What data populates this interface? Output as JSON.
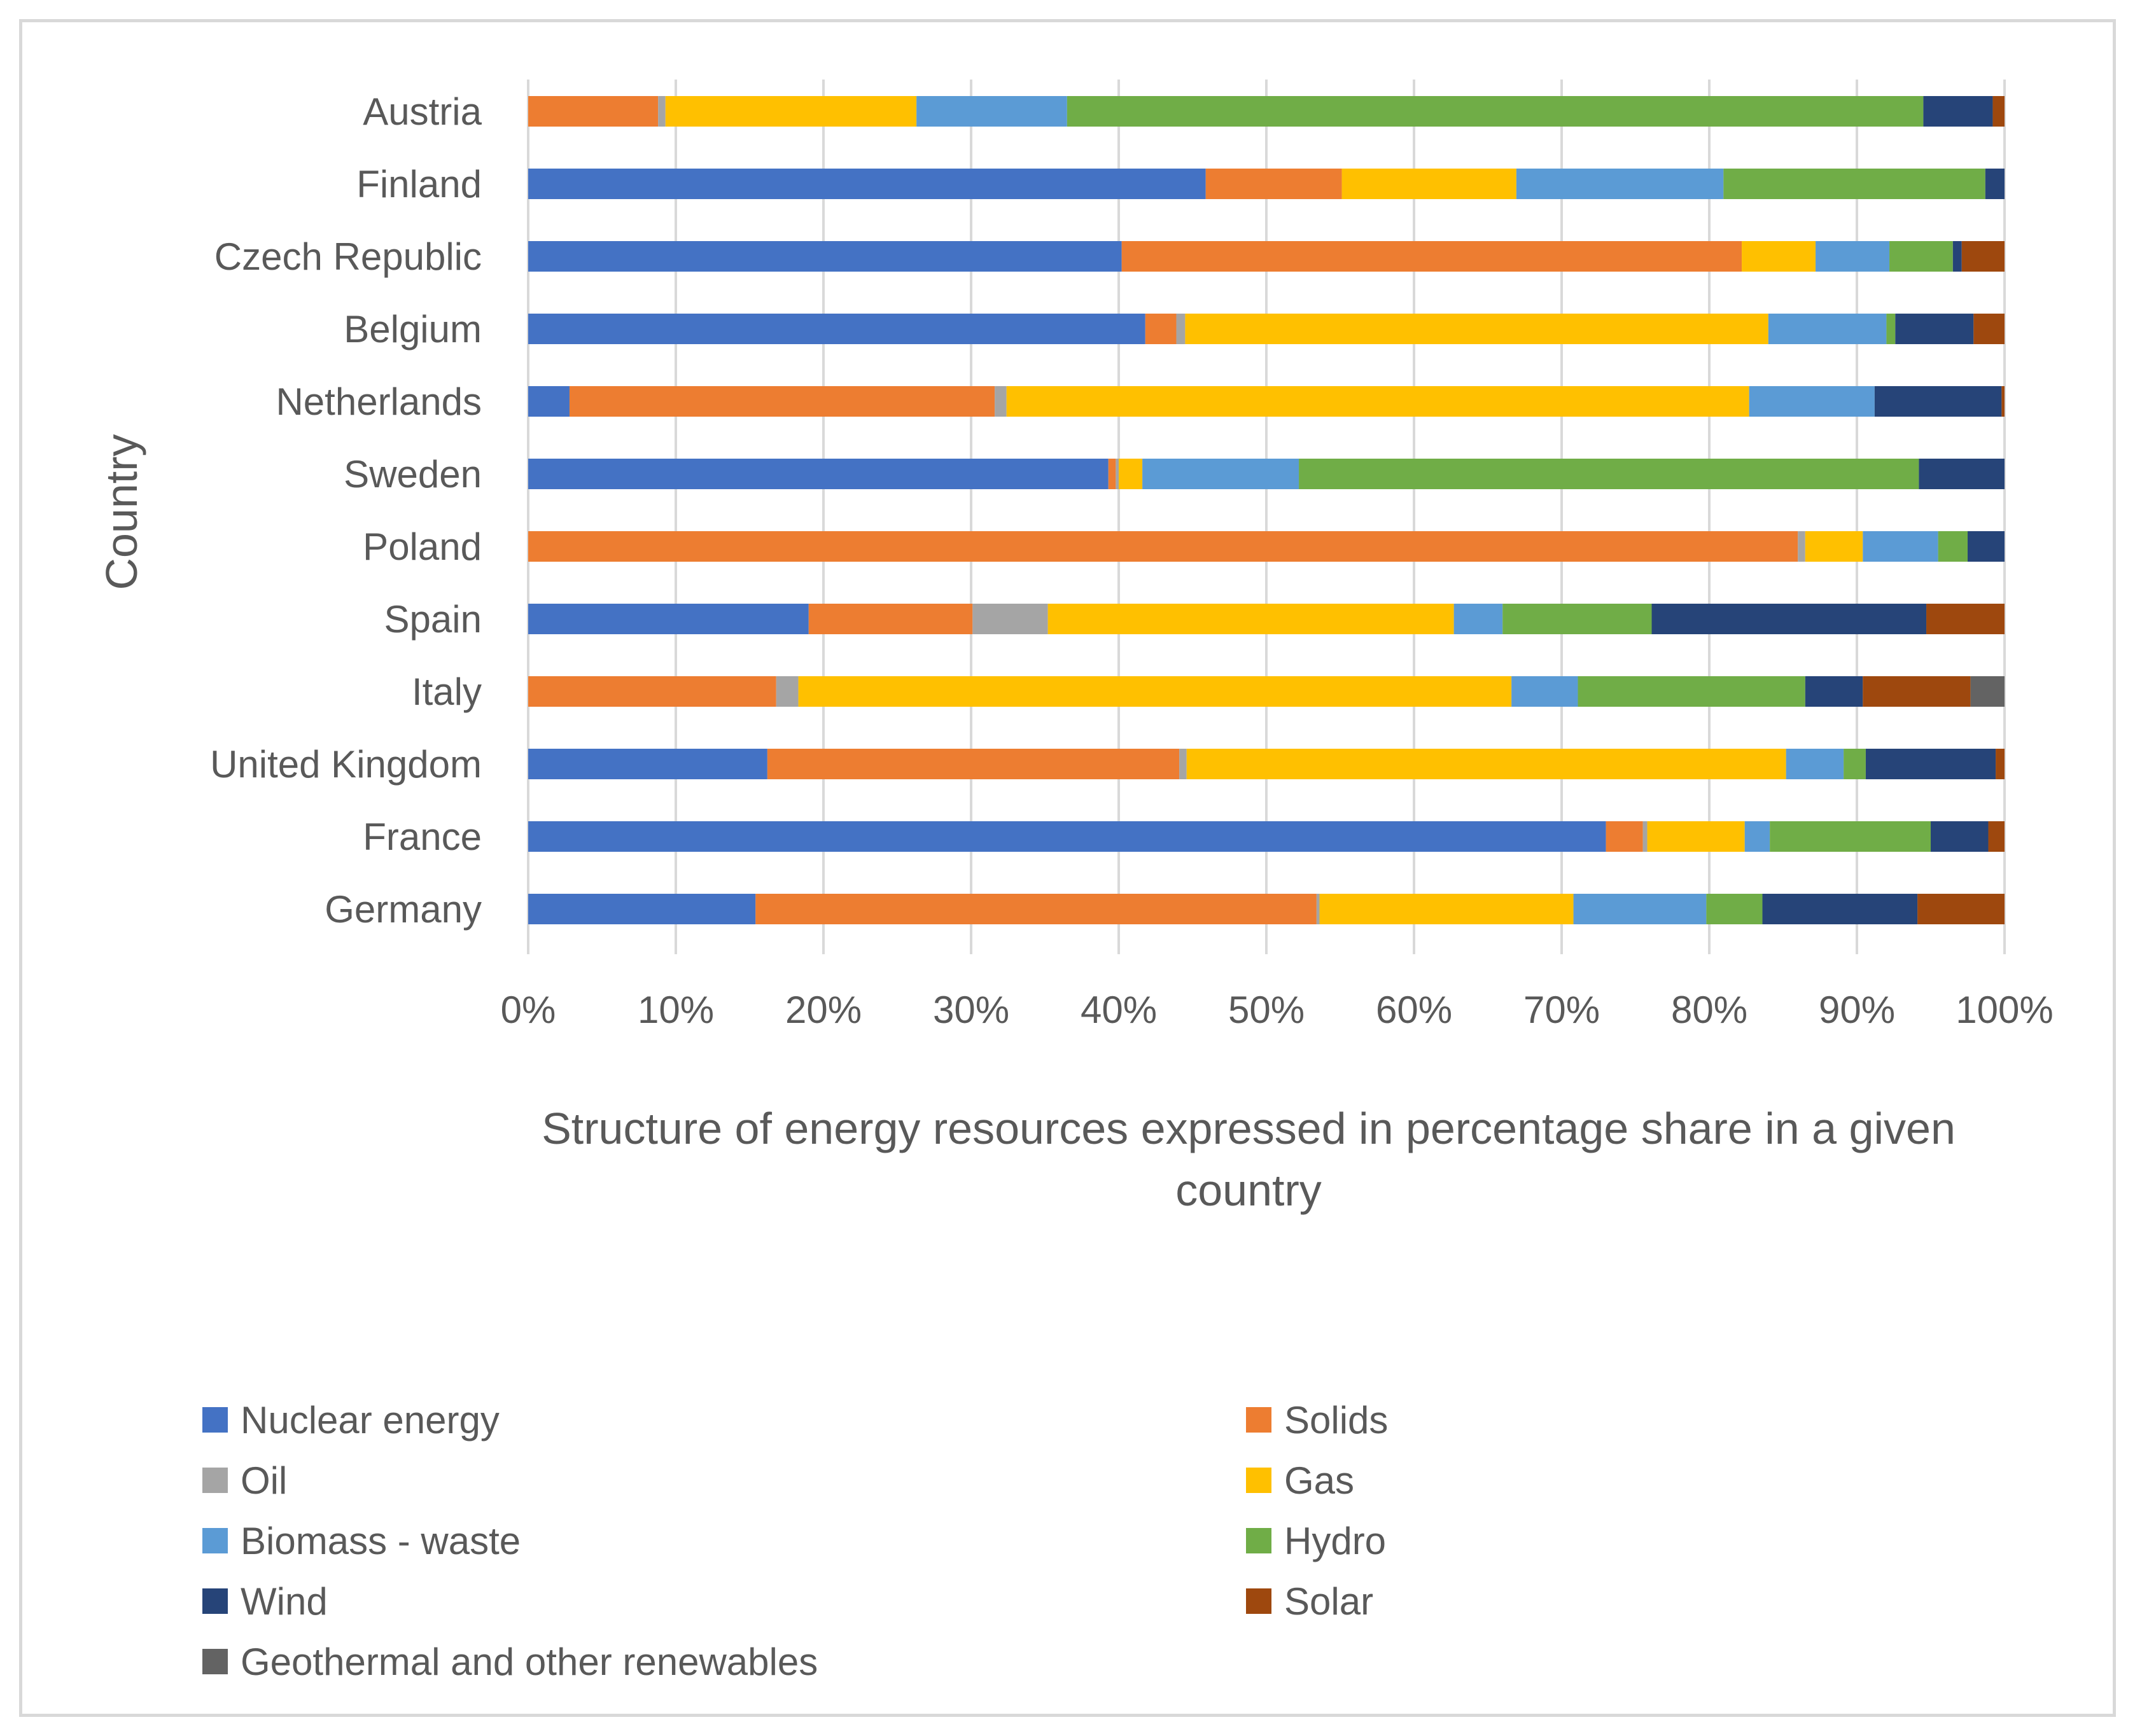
{
  "chart_data": {
    "type": "bar",
    "orientation": "horizontal",
    "stacked": "percent",
    "title": "",
    "xlabel": [
      "Structure of energy resources expressed in percentage share in a given",
      "country"
    ],
    "ylabel": "Country",
    "xlim": [
      0,
      100
    ],
    "x_ticks": [
      "0%",
      "10%",
      "20%",
      "30%",
      "40%",
      "50%",
      "60%",
      "70%",
      "80%",
      "90%",
      "100%"
    ],
    "grid": "vertical",
    "legend_position": "bottom",
    "categories": [
      "Austria",
      "Finland",
      "Czech Republic",
      "Belgium",
      "Netherlands",
      "Sweden",
      "Poland",
      "Spain",
      "Italy",
      "United Kingdom",
      "France",
      "Germany"
    ],
    "series": [
      {
        "name": "Nuclear energy",
        "color": "#4472C4",
        "values": [
          0,
          45.8,
          40.2,
          41.8,
          2.8,
          39.3,
          0,
          19,
          0,
          16.2,
          73,
          15.4
        ]
      },
      {
        "name": "Solids",
        "color": "#ED7D31",
        "values": [
          8.8,
          9.2,
          42,
          2.1,
          28.8,
          0.5,
          86,
          11.1,
          16.8,
          27.9,
          2.5,
          38
        ]
      },
      {
        "name": "Oil",
        "color": "#A5A5A5",
        "values": [
          0.5,
          0,
          0,
          0.6,
          0.8,
          0.2,
          0.5,
          5.1,
          1.5,
          0.5,
          0.3,
          0.2
        ]
      },
      {
        "name": "Gas",
        "color": "#FFC000",
        "values": [
          17,
          11.8,
          5,
          39.5,
          50.3,
          1.6,
          3.9,
          27.5,
          48.3,
          40.6,
          6.6,
          17.2
        ]
      },
      {
        "name": "Biomass - waste",
        "color": "#5B9BD5",
        "values": [
          10.2,
          14,
          5,
          8,
          8.5,
          10.6,
          5.1,
          3.3,
          4.5,
          3.9,
          1.7,
          9
        ]
      },
      {
        "name": "Hydro",
        "color": "#70AD47",
        "values": [
          58,
          17.7,
          4.3,
          0.6,
          0,
          42,
          2,
          10.1,
          15.4,
          1.5,
          10.9,
          3.8
        ]
      },
      {
        "name": "Wind",
        "color": "#264478",
        "values": [
          4.7,
          1.3,
          0.6,
          5.3,
          8.6,
          5.8,
          2.5,
          18.6,
          3.9,
          8.8,
          3.9,
          10.5
        ]
      },
      {
        "name": "Solar",
        "color": "#9E480E",
        "values": [
          0.8,
          0,
          2.9,
          2.1,
          0.2,
          0,
          0,
          5.3,
          7.3,
          0.6,
          1.1,
          5.9
        ]
      },
      {
        "name": "Geothermal and other renewables",
        "color": "#636363",
        "values": [
          0,
          0,
          0,
          0,
          0,
          0,
          0,
          0,
          2.3,
          0,
          0,
          0
        ]
      }
    ]
  }
}
